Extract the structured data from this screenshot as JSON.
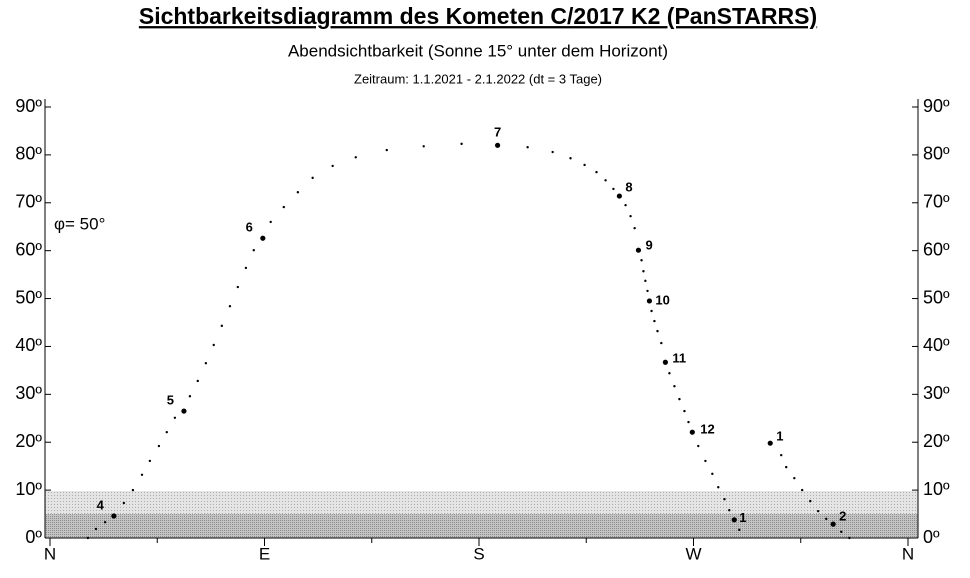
{
  "chart_data": {
    "type": "scatter",
    "title": "Sichtbarkeitsdiagramm des Kometen C/2017 K2 (PanSTARRS)",
    "subtitle": "Abendsichtbarkeit (Sonne 15°  unter dem Horizont)",
    "period": "Zeitraum: 1.1.2021 - 2.1.2022  (dt = 3 Tage)",
    "annotation": "φ= 50°",
    "xlim": [
      0,
      360
    ],
    "ylim": [
      0,
      90
    ],
    "xticks": [
      {
        "value": 0,
        "label": "N"
      },
      {
        "value": 90,
        "label": "E"
      },
      {
        "value": 180,
        "label": "S"
      },
      {
        "value": 270,
        "label": "W"
      },
      {
        "value": 360,
        "label": "N"
      }
    ],
    "xminor_ticks": [
      45,
      135,
      225,
      315
    ],
    "yticks": [
      {
        "value": 0,
        "label": "0º"
      },
      {
        "value": 10,
        "label": "10º"
      },
      {
        "value": 20,
        "label": "20º"
      },
      {
        "value": 30,
        "label": "30º"
      },
      {
        "value": 40,
        "label": "40º"
      },
      {
        "value": 50,
        "label": "50º"
      },
      {
        "value": 60,
        "label": "60º"
      },
      {
        "value": 70,
        "label": "70º"
      },
      {
        "value": 80,
        "label": "80º"
      },
      {
        "value": 90,
        "label": "90º"
      }
    ],
    "shaded_bands": [
      {
        "from": 0,
        "to": 5,
        "color": "#c4c4c4"
      },
      {
        "from": 5,
        "to": 9.8,
        "color": "#e4e4e4"
      }
    ],
    "series": [
      {
        "color": "#000000",
        "x": [
          306.8,
          308.9,
          312.3,
          315.6,
          319.0,
          322.3,
          325.7,
          332.0,
          335.4,
          15.9,
          19.3,
          23.1,
          31.0,
          34.8,
          38.6,
          41.9,
          45.7,
          49.0,
          52.4,
          58.7,
          62.0,
          65.4,
          68.7,
          72.1,
          75.5,
          78.8,
          82.2,
          85.5,
          92.6,
          98.1,
          104.0,
          110.2,
          118.6,
          128.3,
          141.3,
          156.8,
          172.7,
          200.4,
          210.9,
          218.4,
          224.3,
          229.3,
          233.1,
          236.4,
          241.5,
          243.6,
          245.3,
          248.2,
          249.0,
          249.8,
          250.7,
          252.4,
          253.6,
          254.9,
          256.5,
          259.9,
          262.0,
          264.1,
          266.2,
          267.9,
          272.0,
          275.0,
          277.9,
          280.4,
          283.0,
          285.0,
          289.2
        ],
        "values": [
          17.3,
          14.8,
          12.5,
          10.0,
          7.7,
          5.6,
          4.0,
          1.3,
          0,
          0,
          1.9,
          3.3,
          7.3,
          10.0,
          13.2,
          16.1,
          19.2,
          22.1,
          25.1,
          29.6,
          32.8,
          36.5,
          40.3,
          44.3,
          48.4,
          52.4,
          56.4,
          60.1,
          66.0,
          69.1,
          72.2,
          75.2,
          77.7,
          79.5,
          81.0,
          81.8,
          82.3,
          81.6,
          80.6,
          79.3,
          77.9,
          76.4,
          74.7,
          72.9,
          69.5,
          67.2,
          64.7,
          58.0,
          55.7,
          53.7,
          51.6,
          47.4,
          45.3,
          43.2,
          40.7,
          34.4,
          31.7,
          29.0,
          26.5,
          24.2,
          19.2,
          16.1,
          13.4,
          10.6,
          8.1,
          5.8,
          1.7
        ]
      },
      {
        "color": "#000000",
        "x": [
          302.2,
          328.6,
          26.8,
          56.2,
          89.3,
          187.8,
          238.9,
          246.9,
          251.5,
          258.2,
          269.5,
          287.1
        ],
        "values": [
          19.8,
          2.9,
          4.6,
          26.5,
          62.6,
          82.0,
          71.4,
          60.1,
          49.5,
          36.7,
          22.1,
          3.8
        ],
        "labels": [
          "1",
          "2",
          "4",
          "5",
          "6",
          "7",
          "8",
          "9",
          "10",
          "11",
          "12",
          "1"
        ]
      }
    ]
  }
}
